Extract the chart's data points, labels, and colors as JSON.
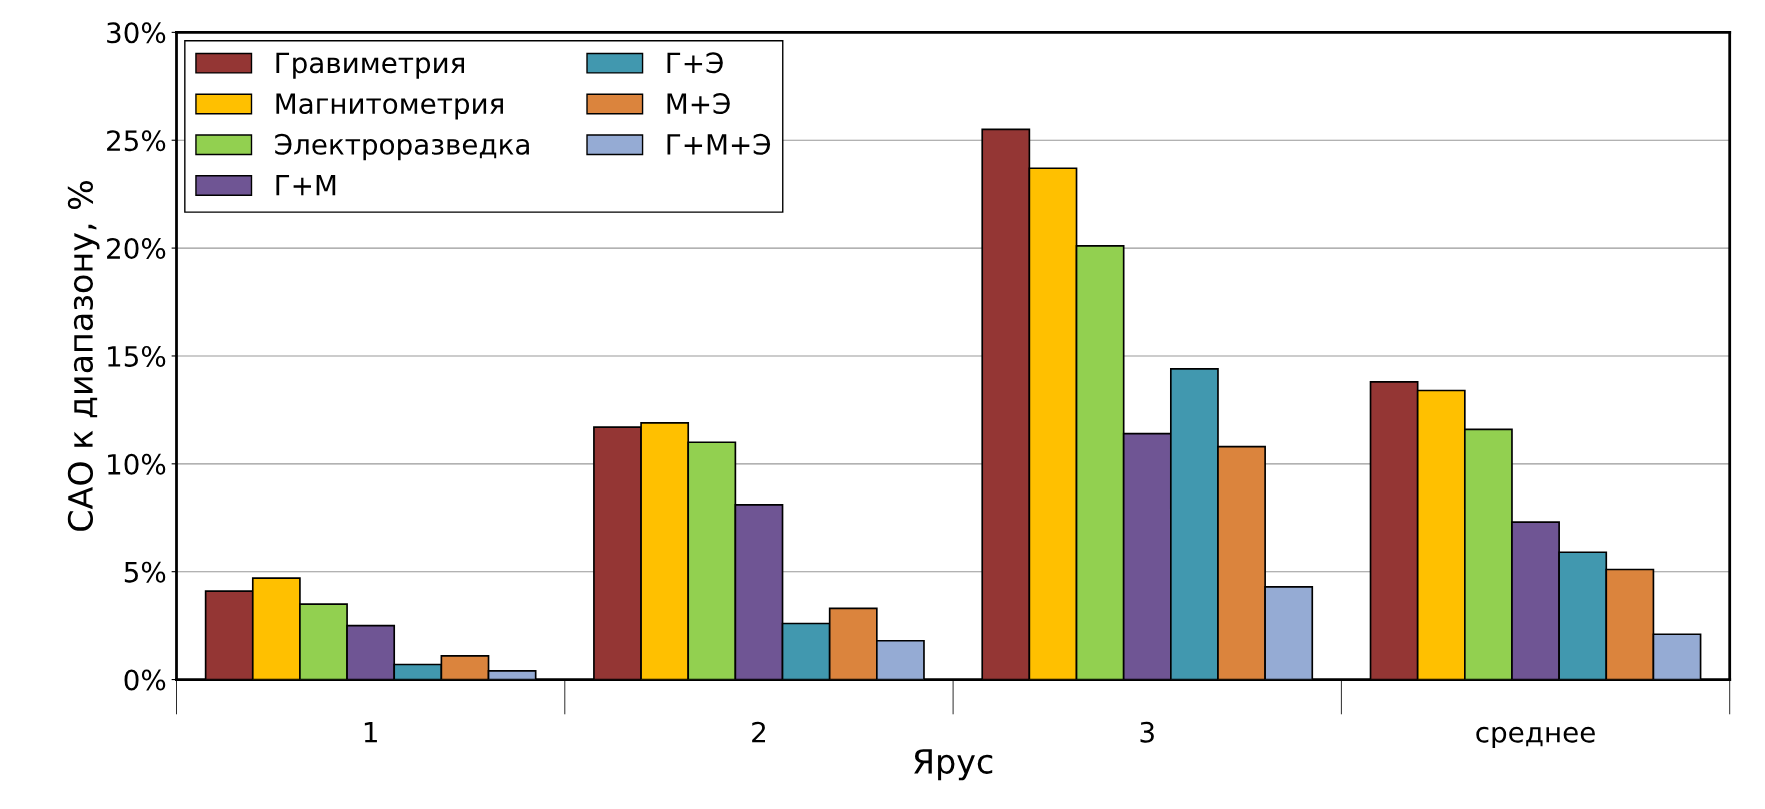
{
  "chart_data": {
    "type": "bar",
    "xlabel": "Ярус",
    "ylabel": "САО к диапазону, %",
    "categories": [
      "1",
      "2",
      "3",
      "среднее"
    ],
    "series": [
      {
        "name": "Гравиметрия",
        "color": "#943634",
        "values": [
          4.1,
          11.7,
          25.5,
          13.8
        ]
      },
      {
        "name": "Магнитометрия",
        "color": "#ffc000",
        "values": [
          4.7,
          11.9,
          23.7,
          13.4
        ]
      },
      {
        "name": "Электроразведка",
        "color": "#92d050",
        "values": [
          3.5,
          11.0,
          20.1,
          11.6
        ]
      },
      {
        "name": "Г+М",
        "color": "#6f5594",
        "values": [
          2.5,
          8.1,
          11.4,
          7.3
        ]
      },
      {
        "name": "Г+Э",
        "color": "#4198af",
        "values": [
          0.7,
          2.6,
          14.4,
          5.9
        ]
      },
      {
        "name": "М+Э",
        "color": "#db843d",
        "values": [
          1.1,
          3.3,
          10.8,
          5.1
        ]
      },
      {
        "name": "Г+М+Э",
        "color": "#95abd4",
        "values": [
          0.4,
          1.8,
          4.3,
          2.1
        ]
      }
    ],
    "ylim": [
      0,
      30
    ],
    "yticks": [
      {
        "value": 0,
        "label": "0%"
      },
      {
        "value": 5,
        "label": "5%"
      },
      {
        "value": 10,
        "label": "10%"
      },
      {
        "value": 15,
        "label": "15%"
      },
      {
        "value": 20,
        "label": "20%"
      },
      {
        "value": 25,
        "label": "25%"
      },
      {
        "value": 30,
        "label": "30%"
      }
    ],
    "grid": "y",
    "legend": "top left"
  }
}
